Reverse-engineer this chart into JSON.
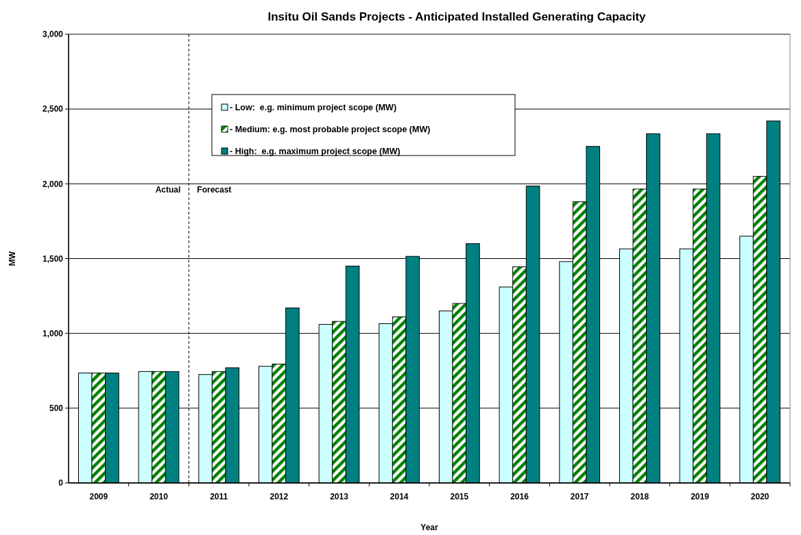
{
  "chart_data": {
    "type": "bar",
    "title": "Insitu Oil Sands Projects - Anticipated Installed Generating Capacity",
    "xlabel": "Year",
    "ylabel": "MW",
    "categories": [
      "2009",
      "2010",
      "2011",
      "2012",
      "2013",
      "2014",
      "2015",
      "2016",
      "2017",
      "2018",
      "2019",
      "2020"
    ],
    "series": [
      {
        "name": "- Low:  e.g. minimum project scope (MW)",
        "color": "#ccffff",
        "values": [
          735,
          745,
          725,
          780,
          1060,
          1065,
          1150,
          1310,
          1480,
          1565,
          1565,
          1650
        ]
      },
      {
        "name": "- Medium: e.g. most probable project scope (MW)",
        "color": "#008000",
        "values": [
          735,
          745,
          745,
          795,
          1080,
          1110,
          1200,
          1445,
          1880,
          1965,
          1965,
          2050
        ]
      },
      {
        "name": "- High:  e.g. maximum project scope (MW)",
        "color": "#008080",
        "values": [
          735,
          745,
          770,
          1170,
          1450,
          1515,
          1600,
          1985,
          2250,
          2335,
          2335,
          2420
        ]
      }
    ],
    "ylim": [
      0,
      3000
    ],
    "yticks": [
      {
        "value": 0,
        "label": "0"
      },
      {
        "value": 500,
        "label": "500"
      },
      {
        "value": 1000,
        "label": "1,000"
      },
      {
        "value": 1500,
        "label": "1,500"
      },
      {
        "value": 2000,
        "label": "2,000"
      },
      {
        "value": 2500,
        "label": "2,500"
      },
      {
        "value": 3000,
        "label": "3,000"
      }
    ],
    "grid": "y",
    "legend": "top left",
    "ref_lines": [
      {
        "axis": "x",
        "value": "2011",
        "line_style": "dashed",
        "color": "#000000"
      }
    ],
    "annotations": [
      "Actual",
      "Forecast"
    ]
  }
}
